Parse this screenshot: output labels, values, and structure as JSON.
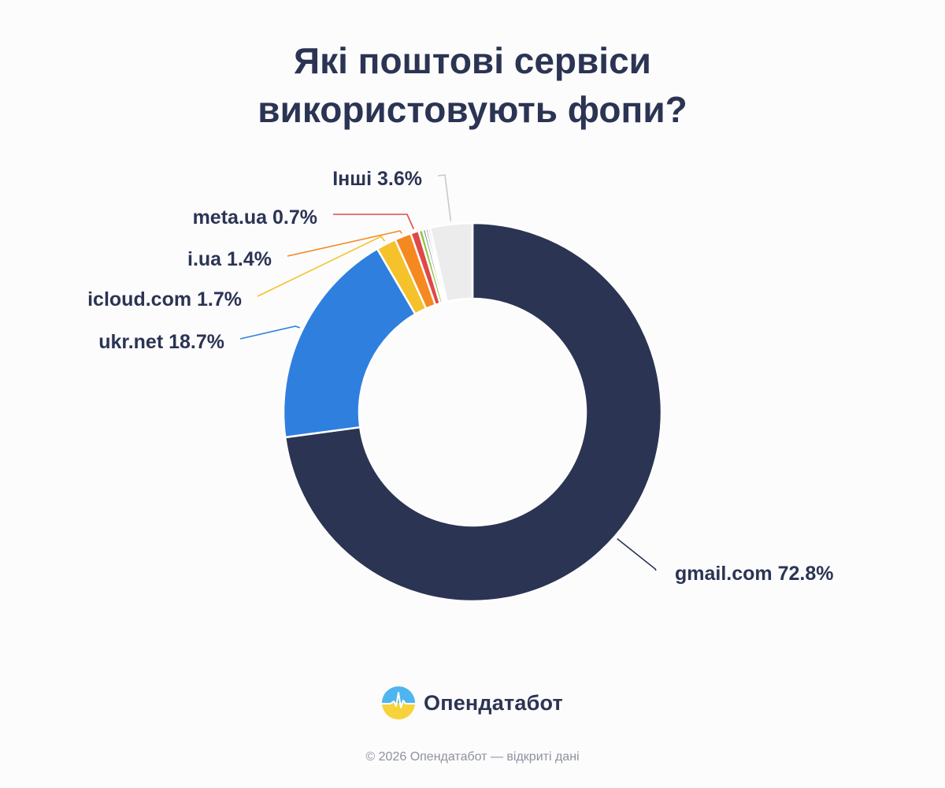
{
  "chart_data": {
    "type": "pie",
    "variant": "donut",
    "title_lines": [
      "Які поштові сервіси",
      "використовують фопи?"
    ],
    "slices": [
      {
        "label": "gmail.com 72.8%",
        "name": "gmail.com",
        "value": 72.8,
        "color": "#2b3453"
      },
      {
        "label": "ukr.net 18.7%",
        "name": "ukr.net",
        "value": 18.7,
        "color": "#2f80de"
      },
      {
        "label": "icloud.com 1.7%",
        "name": "icloud.com",
        "value": 1.7,
        "color": "#f5c22c"
      },
      {
        "label": "i.ua 1.4%",
        "name": "i.ua",
        "value": 1.4,
        "color": "#f5891f"
      },
      {
        "label": "meta.ua 0.7%",
        "name": "meta.ua",
        "value": 0.7,
        "color": "#e04848"
      },
      {
        "label": "",
        "name": "",
        "value": 0.35,
        "color": "#8cc63f"
      },
      {
        "label": "",
        "name": "",
        "value": 0.25,
        "color": "#8b8d93"
      },
      {
        "label": "",
        "name": "",
        "value": 0.2,
        "color": "#3a3f4d"
      },
      {
        "label": "",
        "name": "",
        "value": 0.2,
        "color": "#c9cbd1"
      },
      {
        "label": "Інші 3.6%",
        "name": "Інші",
        "value": 3.6,
        "color": "#ececec"
      }
    ],
    "legend": "none"
  },
  "brand": {
    "name": "Опендатабот",
    "logo_colors": [
      "#4fb5f0",
      "#f7d23a"
    ]
  },
  "footer": {
    "text": "© 2026 Опендатабот — відкриті дані"
  }
}
